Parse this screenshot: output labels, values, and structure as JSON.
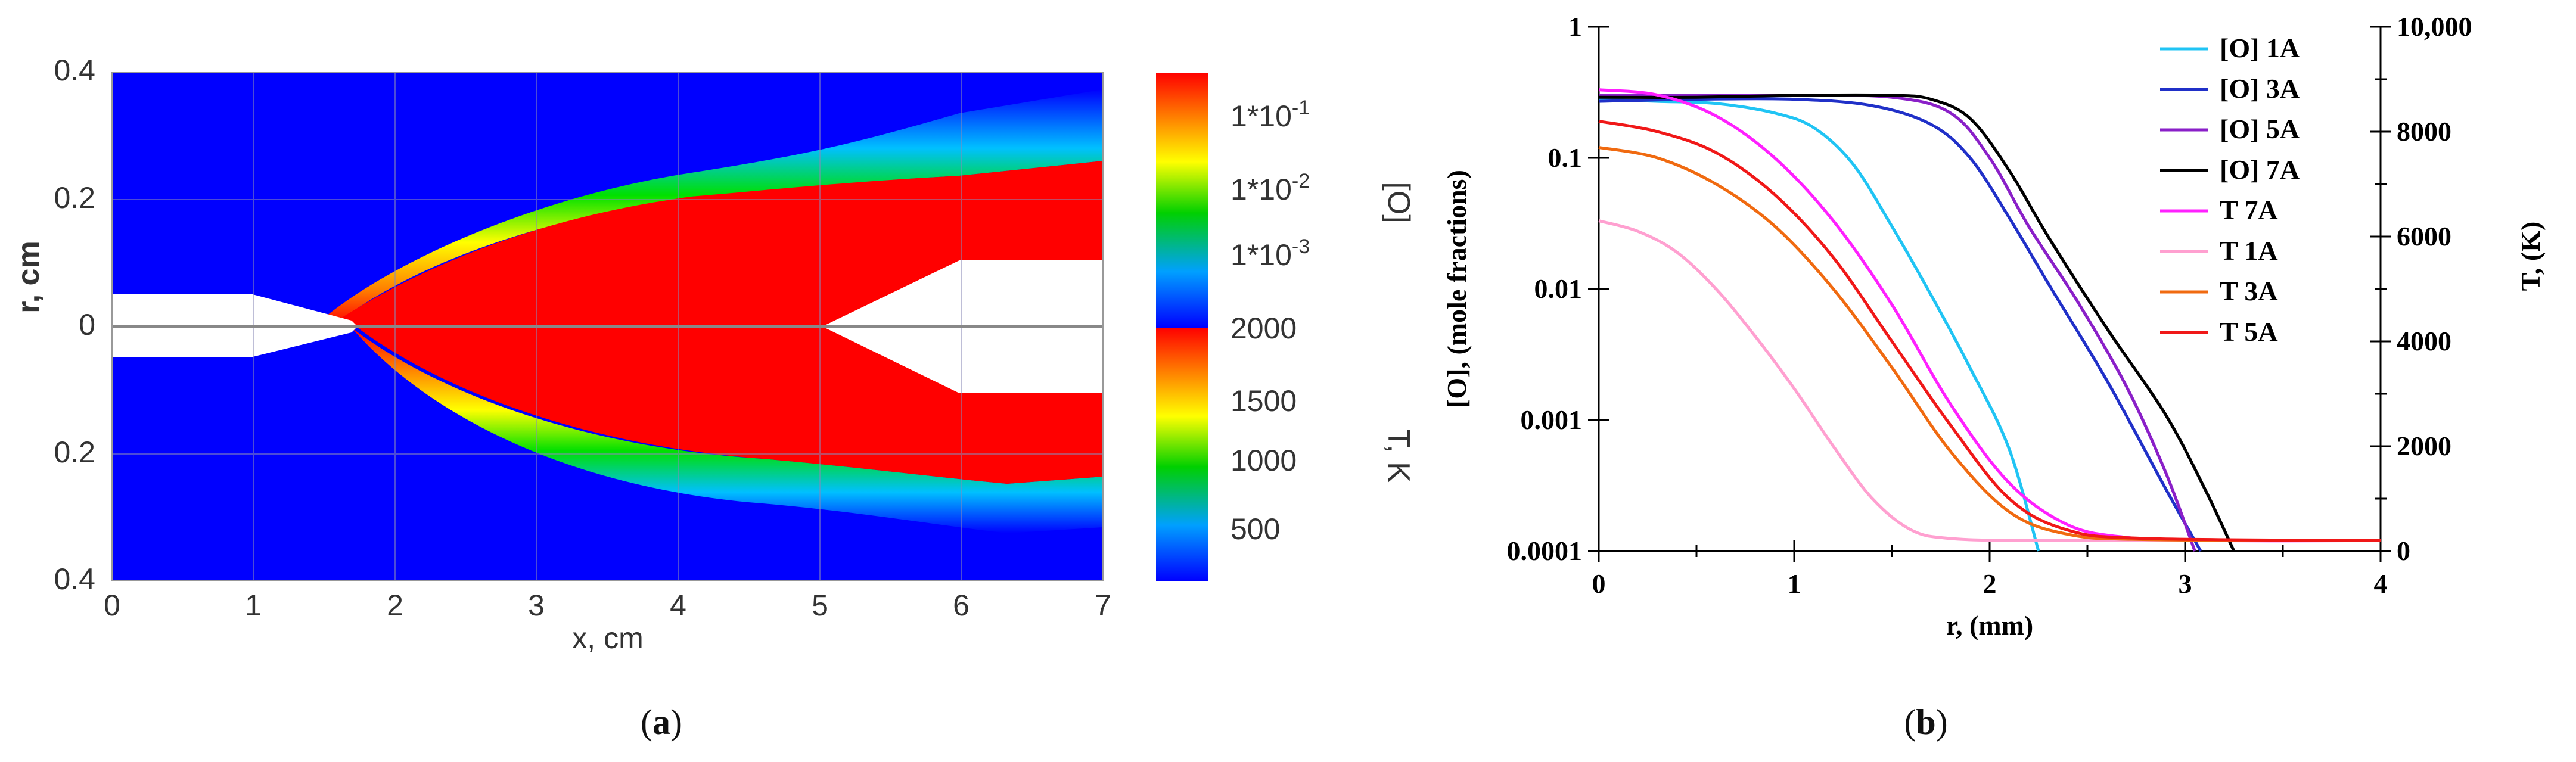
{
  "panel_a": {
    "caption_prefix": "(",
    "caption_letter": "a",
    "caption_suffix": ")",
    "xlabel": "x, cm",
    "ylabel": "r, cm",
    "x_ticks": [
      "0",
      "1",
      "2",
      "3",
      "4",
      "5",
      "6",
      "7"
    ],
    "y_ticks_top": [
      "0.4",
      "0.2",
      "0"
    ],
    "y_ticks_bottom": [
      "0.2",
      "0.4"
    ],
    "colorbar_O": {
      "label": "[O]",
      "ticks": [
        "1*10-1",
        "1*10-2",
        "1*10-3"
      ],
      "tick_mantissa": "1*10",
      "tick_exponents": [
        "-1",
        "-2",
        "-3"
      ]
    },
    "colorbar_T": {
      "label": "T, K",
      "ticks": [
        "2000",
        "1500",
        "1000",
        "500"
      ]
    }
  },
  "panel_b": {
    "caption_prefix": "(",
    "caption_letter": "b",
    "caption_suffix": ")",
    "xlabel": "r, (mm)",
    "ylabel_left": "[O], (mole fractions)",
    "ylabel_right": "T, (K)",
    "x_ticks": [
      "0",
      "1",
      "2",
      "3",
      "4"
    ],
    "y_left_ticks": [
      "1",
      "0.1",
      "0.01",
      "0.001",
      "0.0001"
    ],
    "y_right_ticks": [
      "10,000",
      "8000",
      "6000",
      "4000",
      "2000",
      "0"
    ]
  },
  "chart_data": [
    {
      "type": "heatmap",
      "title": "",
      "xlabel": "x, cm",
      "ylabel": "r, cm",
      "xlim": [
        0,
        7
      ],
      "ylim": [
        -0.4,
        0.4
      ],
      "upper_half_field": "[O] (mole fraction, log color scale)",
      "lower_half_field": "T, K",
      "O_colorbar_ticks": [
        0.1,
        0.01,
        0.001
      ],
      "T_colorbar_ticks": [
        2000,
        1500,
        1000,
        500
      ],
      "T_colorbar_range": [
        300,
        2000
      ]
    },
    {
      "type": "line",
      "xlabel": "r, (mm)",
      "ylabel": "[O], (mole fractions)",
      "ylabel_right": "T, (K)",
      "xlim": [
        0,
        4
      ],
      "ylim": [
        0.0001,
        1
      ],
      "yscale": "log",
      "ylim_right": [
        0,
        10000
      ],
      "legend_position": "top-right",
      "series": [
        {
          "name": "[O] 1A",
          "axis": "left",
          "color": "#20c4f4",
          "x": [
            0,
            0.3,
            0.6,
            0.9,
            1.1,
            1.3,
            1.5,
            1.7,
            1.9,
            2.1,
            2.25
          ],
          "values": [
            0.28,
            0.27,
            0.26,
            0.22,
            0.17,
            0.09,
            0.03,
            0.009,
            0.0025,
            0.0006,
            0.0001
          ]
        },
        {
          "name": "[O] 3A",
          "axis": "left",
          "color": "#2030c8",
          "x": [
            0,
            0.5,
            1.0,
            1.4,
            1.7,
            1.9,
            2.1,
            2.3,
            2.6,
            2.9,
            3.08
          ],
          "values": [
            0.27,
            0.28,
            0.28,
            0.25,
            0.18,
            0.1,
            0.035,
            0.011,
            0.002,
            0.0003,
            0.0001
          ]
        },
        {
          "name": "[O] 5A",
          "axis": "left",
          "color": "#8a1fc8",
          "x": [
            0,
            0.5,
            1.0,
            1.5,
            1.8,
            2.0,
            2.2,
            2.45,
            2.7,
            2.9,
            3.05
          ],
          "values": [
            0.3,
            0.3,
            0.3,
            0.29,
            0.22,
            0.1,
            0.03,
            0.008,
            0.0018,
            0.0004,
            0.0001
          ]
        },
        {
          "name": "[O] 7A",
          "axis": "left",
          "color": "#000000",
          "x": [
            0,
            0.5,
            1.0,
            1.5,
            1.7,
            1.9,
            2.1,
            2.3,
            2.6,
            2.9,
            3.1,
            3.25
          ],
          "values": [
            0.29,
            0.29,
            0.3,
            0.3,
            0.28,
            0.2,
            0.08,
            0.025,
            0.005,
            0.0011,
            0.0003,
            0.0001
          ]
        },
        {
          "name": "T 7A",
          "axis": "right",
          "color": "#ff20ff",
          "x": [
            0,
            0.3,
            0.6,
            0.9,
            1.2,
            1.5,
            1.8,
            2.1,
            2.4,
            2.7,
            3.1,
            4.0
          ],
          "values": [
            8800,
            8700,
            8300,
            7500,
            6300,
            4700,
            2800,
            1300,
            500,
            260,
            200,
            200
          ]
        },
        {
          "name": "T 1A",
          "axis": "right",
          "color": "#ffa0d0",
          "x": [
            0,
            0.2,
            0.4,
            0.6,
            0.8,
            1.0,
            1.2,
            1.4,
            1.6,
            1.8,
            2.2,
            3.0,
            4.0
          ],
          "values": [
            6300,
            6100,
            5700,
            5000,
            4100,
            3100,
            2000,
            1000,
            400,
            240,
            200,
            200,
            200
          ]
        },
        {
          "name": "T 3A",
          "axis": "right",
          "color": "#f06a10",
          "x": [
            0,
            0.3,
            0.6,
            0.9,
            1.2,
            1.5,
            1.8,
            2.1,
            2.4,
            2.8,
            4.0
          ],
          "values": [
            7700,
            7500,
            7000,
            6200,
            5000,
            3500,
            1900,
            750,
            320,
            220,
            200
          ]
        },
        {
          "name": "T 5A",
          "axis": "right",
          "color": "#f01818",
          "x": [
            0,
            0.3,
            0.6,
            0.9,
            1.2,
            1.5,
            1.8,
            2.1,
            2.4,
            2.8,
            4.0
          ],
          "values": [
            8200,
            8000,
            7600,
            6800,
            5600,
            4000,
            2400,
            1000,
            400,
            240,
            200
          ]
        }
      ]
    }
  ]
}
